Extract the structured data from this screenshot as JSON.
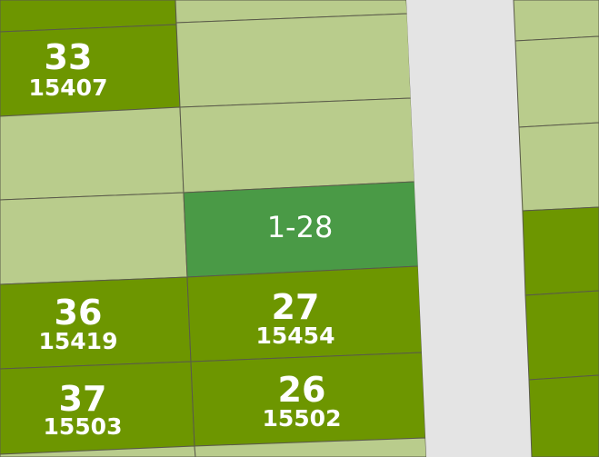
{
  "parcels": [
    {
      "number": "33",
      "id": "15407"
    },
    {
      "number": "36",
      "id": "15419"
    },
    {
      "number": "27",
      "id": "15454"
    },
    {
      "number": "37",
      "id": "15503"
    },
    {
      "number": "26",
      "id": "15502"
    }
  ],
  "highlighted": {
    "label": "1-28"
  }
}
